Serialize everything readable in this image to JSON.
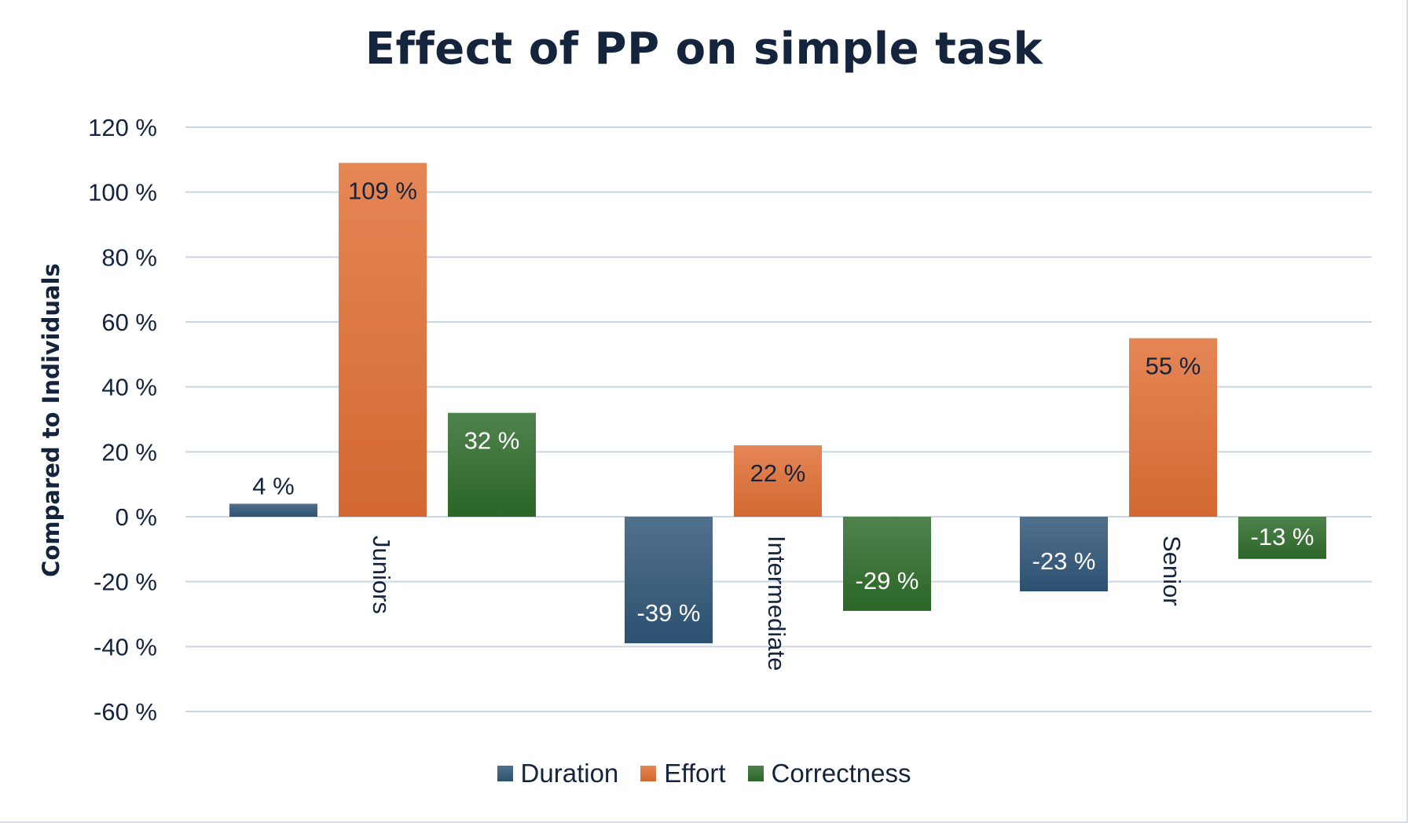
{
  "chart_data": {
    "type": "bar",
    "title": "Effect of PP on simple task",
    "ylabel": "Compared to Individuals",
    "xlabel": "",
    "categories": [
      "Juniors",
      "Intermediate",
      "Senior"
    ],
    "series": [
      {
        "name": "Duration",
        "values": [
          4,
          -39,
          -23
        ],
        "labels": [
          "4 %",
          "-39 %",
          "-23 %"
        ],
        "color": "#2f5677"
      },
      {
        "name": "Effort",
        "values": [
          109,
          22,
          55
        ],
        "labels": [
          "109 %",
          "22 %",
          "55 %"
        ],
        "color": "#e06f35"
      },
      {
        "name": "Correctness",
        "values": [
          32,
          -29,
          -13
        ],
        "labels": [
          "32 %",
          "-29 %",
          "-13 %"
        ],
        "color": "#2e6b2a"
      }
    ],
    "ylim": [
      -60,
      120
    ],
    "yticks": [
      120,
      100,
      80,
      60,
      40,
      20,
      0,
      -20,
      -40,
      -60
    ],
    "ytick_labels": [
      "120 %",
      "100 %",
      "80 %",
      "60 %",
      "40 %",
      "20 %",
      "0 %",
      "-20 %",
      "-40 %",
      "-60 %"
    ],
    "grid": true,
    "legend_position": "bottom",
    "category_label_orientation": "rotated-vertical",
    "label_colors": {
      "dark": "#14243d",
      "light": "#ffffff"
    },
    "grid_color": "#c9d6e6"
  }
}
